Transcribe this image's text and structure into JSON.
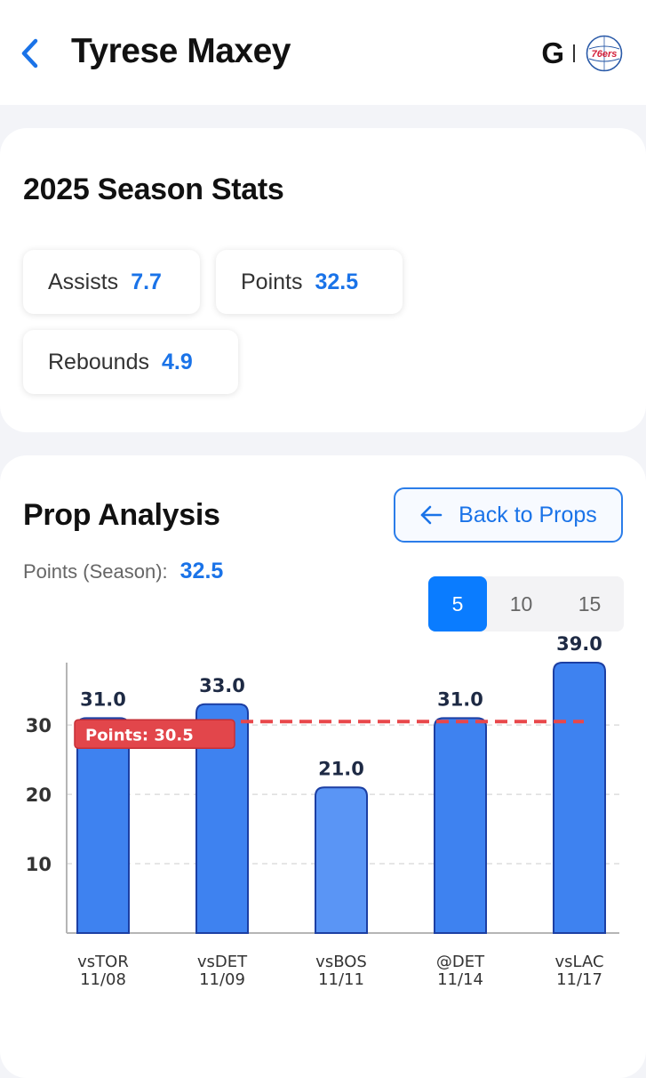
{
  "header": {
    "back_icon": "chevron-left-icon",
    "player_name": "Tyrese Maxey",
    "position": "G",
    "team_logo_text": "76ers",
    "team_logo_icon": "76ers-logo-icon"
  },
  "season_stats": {
    "title": "2025 Season Stats",
    "stats": [
      {
        "label": "Assists",
        "value": "7.7"
      },
      {
        "label": "Points",
        "value": "32.5"
      },
      {
        "label": "Rebounds",
        "value": "4.9"
      }
    ]
  },
  "prop_analysis": {
    "title": "Prop Analysis",
    "back_button_label": "Back to Props",
    "season_label": "Points (Season):",
    "season_value": "32.5",
    "ranges": [
      {
        "label": "5",
        "active": true
      },
      {
        "label": "10",
        "active": false
      },
      {
        "label": "15",
        "active": false
      }
    ]
  },
  "colors": {
    "accent": "#1a73e8",
    "bar": "#3e82f0",
    "bar_light": "#5a95f5",
    "bar_border": "#1c3fa3",
    "prop_line": "#e8474a"
  },
  "chart_data": {
    "type": "bar",
    "categories": [
      "vsTOR",
      "vsDET",
      "vsBOS",
      "@DET",
      "vsLAC"
    ],
    "dates": [
      "11/08",
      "11/09",
      "11/11",
      "11/14",
      "11/17"
    ],
    "values": [
      31.0,
      33.0,
      21.0,
      31.0,
      39.0
    ],
    "value_labels": [
      "31.0",
      "33.0",
      "21.0",
      "31.0",
      "39.0"
    ],
    "yticks": [
      10,
      20,
      30
    ],
    "ylim": [
      0,
      39
    ],
    "grid": true,
    "reference_line": {
      "value": 30.5,
      "label": "Points: 30.5"
    }
  }
}
